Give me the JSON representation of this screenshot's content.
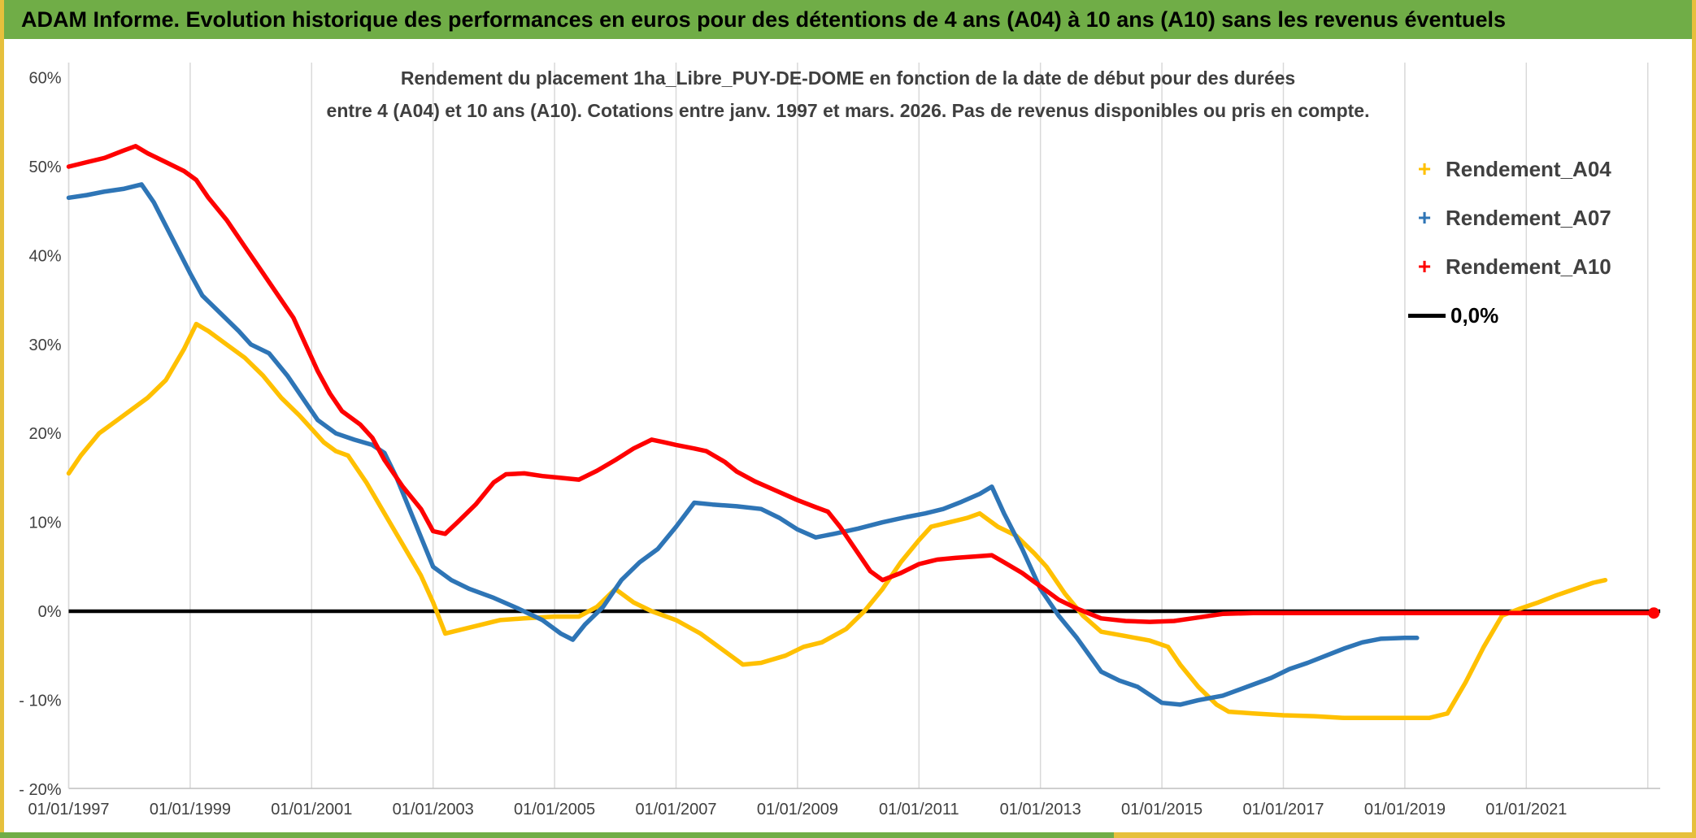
{
  "page": {
    "header_title": "ADAM Informe. Evolution historique des performances en euros pour des détentions de 4 ans (A04) à 10 ans (A10) sans les revenus éventuels"
  },
  "colors": {
    "header_bg": "#70AD47",
    "frame_accent": "#E6C03C",
    "frame_green": "#70AD47",
    "a04": "#FFC000",
    "a07": "#2E75B6",
    "a10": "#FE0000",
    "zero_line": "#000000",
    "grid": "#D9D9D9",
    "axis_text": "#404040",
    "title_text": "#3F3F3F"
  },
  "chart_data": {
    "type": "line",
    "title_lines": [
      "Rendement du placement 1ha_Libre_PUY-DE-DOME en fonction de la date de début pour des durées",
      "entre 4 (A04) et 10 ans (A10). Cotations entre janv. 1997 et mars. 2026. Pas de revenus disponibles ou pris en compte."
    ],
    "x_axis": {
      "range_years": [
        1997,
        2023.2
      ],
      "grid_years": [
        1997,
        1999,
        2001,
        2003,
        2005,
        2007,
        2009,
        2011,
        2013,
        2015,
        2017,
        2019,
        2021,
        2023
      ],
      "ticks": [
        {
          "year": 1997,
          "label": "01/01/1997"
        },
        {
          "year": 1999,
          "label": "01/01/1999"
        },
        {
          "year": 2001,
          "label": "01/01/2001"
        },
        {
          "year": 2003,
          "label": "01/01/2003"
        },
        {
          "year": 2005,
          "label": "01/01/2005"
        },
        {
          "year": 2007,
          "label": "01/01/2007"
        },
        {
          "year": 2009,
          "label": "01/01/2009"
        },
        {
          "year": 2011,
          "label": "01/01/2011"
        },
        {
          "year": 2013,
          "label": "01/01/2013"
        },
        {
          "year": 2015,
          "label": "01/01/2015"
        },
        {
          "year": 2017,
          "label": "01/01/2017"
        },
        {
          "year": 2019,
          "label": "01/01/2019"
        },
        {
          "year": 2021,
          "label": "01/01/2021"
        }
      ]
    },
    "y_axis": {
      "range_pct": [
        -20,
        60
      ],
      "unit": "%",
      "ticks": [
        {
          "value": 60,
          "label": "60%"
        },
        {
          "value": 50,
          "label": "50%"
        },
        {
          "value": 40,
          "label": "40%"
        },
        {
          "value": 30,
          "label": "30%"
        },
        {
          "value": 20,
          "label": "20%"
        },
        {
          "value": 10,
          "label": "10%"
        },
        {
          "value": 0,
          "label": "0%"
        },
        {
          "value": -10,
          "label": "- 10%"
        },
        {
          "value": -20,
          "label": "- 20%"
        }
      ]
    },
    "zero_line": {
      "value": 0,
      "label": "0,0%"
    },
    "legend": [
      {
        "label": "Rendement_A04",
        "color_key": "a04",
        "marker": "plus",
        "marker_glyph": "+"
      },
      {
        "label": "Rendement_A07",
        "color_key": "a07",
        "marker": "plus",
        "marker_glyph": "+"
      },
      {
        "label": "Rendement_A10",
        "color_key": "a10",
        "marker": "plus",
        "marker_glyph": "+"
      },
      {
        "label": "0,0%",
        "color_key": "zero_line",
        "marker": "line",
        "marker_glyph": ""
      }
    ],
    "series": [
      {
        "name": "Rendement_A04",
        "color_key": "a04",
        "end_dot": false,
        "points": [
          [
            1997.0,
            15.5
          ],
          [
            1997.2,
            17.5
          ],
          [
            1997.5,
            20
          ],
          [
            1997.8,
            21.5
          ],
          [
            1998.0,
            22.5
          ],
          [
            1998.3,
            24
          ],
          [
            1998.6,
            26
          ],
          [
            1998.9,
            29.5
          ],
          [
            1999.1,
            32.3
          ],
          [
            1999.3,
            31.5
          ],
          [
            1999.6,
            30
          ],
          [
            1999.9,
            28.5
          ],
          [
            2000.2,
            26.5
          ],
          [
            2000.5,
            24
          ],
          [
            2000.8,
            22
          ],
          [
            2001.0,
            20.5
          ],
          [
            2001.2,
            19
          ],
          [
            2001.4,
            18
          ],
          [
            2001.6,
            17.5
          ],
          [
            2001.9,
            14.5
          ],
          [
            2002.2,
            11
          ],
          [
            2002.5,
            7.5
          ],
          [
            2002.8,
            4
          ],
          [
            2003.0,
            1
          ],
          [
            2003.2,
            -2.5
          ],
          [
            2003.5,
            -2
          ],
          [
            2003.8,
            -1.5
          ],
          [
            2004.1,
            -1
          ],
          [
            2004.5,
            -0.8
          ],
          [
            2005.0,
            -0.6
          ],
          [
            2005.4,
            -0.6
          ],
          [
            2005.7,
            0.5
          ],
          [
            2006.0,
            2.5
          ],
          [
            2006.3,
            1
          ],
          [
            2006.6,
            0
          ],
          [
            2007.0,
            -1
          ],
          [
            2007.4,
            -2.5
          ],
          [
            2007.8,
            -4.5
          ],
          [
            2008.1,
            -6
          ],
          [
            2008.4,
            -5.8
          ],
          [
            2008.8,
            -5
          ],
          [
            2009.1,
            -4
          ],
          [
            2009.4,
            -3.5
          ],
          [
            2009.8,
            -2
          ],
          [
            2010.1,
            0
          ],
          [
            2010.4,
            2.5
          ],
          [
            2010.7,
            5.5
          ],
          [
            2011.0,
            8
          ],
          [
            2011.2,
            9.5
          ],
          [
            2011.5,
            10
          ],
          [
            2011.8,
            10.5
          ],
          [
            2012.0,
            11
          ],
          [
            2012.3,
            9.5
          ],
          [
            2012.6,
            8.5
          ],
          [
            2012.9,
            6.5
          ],
          [
            2013.1,
            5
          ],
          [
            2013.4,
            2
          ],
          [
            2013.7,
            -0.5
          ],
          [
            2014.0,
            -2.3
          ],
          [
            2014.4,
            -2.8
          ],
          [
            2014.8,
            -3.3
          ],
          [
            2015.1,
            -4
          ],
          [
            2015.3,
            -6
          ],
          [
            2015.6,
            -8.5
          ],
          [
            2015.9,
            -10.5
          ],
          [
            2016.1,
            -11.3
          ],
          [
            2016.5,
            -11.5
          ],
          [
            2017.0,
            -11.7
          ],
          [
            2017.5,
            -11.8
          ],
          [
            2018.0,
            -12
          ],
          [
            2018.5,
            -12
          ],
          [
            2019.0,
            -12
          ],
          [
            2019.4,
            -12
          ],
          [
            2019.7,
            -11.5
          ],
          [
            2020.0,
            -8
          ],
          [
            2020.3,
            -4
          ],
          [
            2020.6,
            -0.5
          ],
          [
            2020.9,
            0.3
          ],
          [
            2021.2,
            1
          ],
          [
            2021.5,
            1.8
          ],
          [
            2021.8,
            2.5
          ],
          [
            2022.1,
            3.2
          ],
          [
            2022.3,
            3.5
          ]
        ]
      },
      {
        "name": "Rendement_A07",
        "color_key": "a07",
        "end_dot": false,
        "points": [
          [
            1997.0,
            46.5
          ],
          [
            1997.3,
            46.8
          ],
          [
            1997.6,
            47.2
          ],
          [
            1997.9,
            47.5
          ],
          [
            1998.2,
            48
          ],
          [
            1998.4,
            46
          ],
          [
            1998.7,
            42
          ],
          [
            1999.0,
            38
          ],
          [
            1999.2,
            35.5
          ],
          [
            1999.5,
            33.5
          ],
          [
            1999.8,
            31.5
          ],
          [
            2000.0,
            30
          ],
          [
            2000.3,
            29
          ],
          [
            2000.6,
            26.5
          ],
          [
            2000.9,
            23.5
          ],
          [
            2001.1,
            21.5
          ],
          [
            2001.4,
            20
          ],
          [
            2001.7,
            19.3
          ],
          [
            2002.0,
            18.7
          ],
          [
            2002.2,
            17.8
          ],
          [
            2002.4,
            15
          ],
          [
            2002.7,
            10
          ],
          [
            2003.0,
            5
          ],
          [
            2003.3,
            3.5
          ],
          [
            2003.6,
            2.5
          ],
          [
            2004.0,
            1.5
          ],
          [
            2004.4,
            0.3
          ],
          [
            2004.8,
            -1
          ],
          [
            2005.1,
            -2.5
          ],
          [
            2005.3,
            -3.2
          ],
          [
            2005.5,
            -1.5
          ],
          [
            2005.8,
            0.5
          ],
          [
            2006.1,
            3.5
          ],
          [
            2006.4,
            5.5
          ],
          [
            2006.7,
            7
          ],
          [
            2007.0,
            9.5
          ],
          [
            2007.3,
            12.2
          ],
          [
            2007.6,
            12
          ],
          [
            2008.0,
            11.8
          ],
          [
            2008.4,
            11.5
          ],
          [
            2008.7,
            10.5
          ],
          [
            2009.0,
            9.2
          ],
          [
            2009.3,
            8.3
          ],
          [
            2009.6,
            8.7
          ],
          [
            2010.0,
            9.3
          ],
          [
            2010.4,
            10
          ],
          [
            2010.8,
            10.6
          ],
          [
            2011.1,
            11
          ],
          [
            2011.4,
            11.5
          ],
          [
            2011.7,
            12.3
          ],
          [
            2012.0,
            13.2
          ],
          [
            2012.2,
            14
          ],
          [
            2012.4,
            11
          ],
          [
            2012.7,
            7
          ],
          [
            2013.0,
            2.5
          ],
          [
            2013.3,
            -0.5
          ],
          [
            2013.6,
            -3
          ],
          [
            2014.0,
            -6.8
          ],
          [
            2014.3,
            -7.8
          ],
          [
            2014.6,
            -8.5
          ],
          [
            2015.0,
            -10.3
          ],
          [
            2015.3,
            -10.5
          ],
          [
            2015.6,
            -10
          ],
          [
            2016.0,
            -9.5
          ],
          [
            2016.4,
            -8.5
          ],
          [
            2016.8,
            -7.5
          ],
          [
            2017.1,
            -6.5
          ],
          [
            2017.4,
            -5.8
          ],
          [
            2017.7,
            -5
          ],
          [
            2018.0,
            -4.2
          ],
          [
            2018.3,
            -3.5
          ],
          [
            2018.6,
            -3.1
          ],
          [
            2019.0,
            -3
          ],
          [
            2019.2,
            -3
          ]
        ]
      },
      {
        "name": "Rendement_A10",
        "color_key": "a10",
        "end_dot": true,
        "points": [
          [
            1997.0,
            50
          ],
          [
            1997.3,
            50.5
          ],
          [
            1997.6,
            51
          ],
          [
            1997.9,
            51.8
          ],
          [
            1998.1,
            52.3
          ],
          [
            1998.3,
            51.5
          ],
          [
            1998.6,
            50.5
          ],
          [
            1998.9,
            49.5
          ],
          [
            1999.1,
            48.5
          ],
          [
            1999.3,
            46.5
          ],
          [
            1999.6,
            44
          ],
          [
            1999.9,
            41
          ],
          [
            2000.1,
            39
          ],
          [
            2000.4,
            36
          ],
          [
            2000.7,
            33
          ],
          [
            2000.9,
            30
          ],
          [
            2001.1,
            27
          ],
          [
            2001.3,
            24.5
          ],
          [
            2001.5,
            22.5
          ],
          [
            2001.8,
            21
          ],
          [
            2002.0,
            19.5
          ],
          [
            2002.2,
            17
          ],
          [
            2002.5,
            14
          ],
          [
            2002.8,
            11.5
          ],
          [
            2003.0,
            9
          ],
          [
            2003.2,
            8.7
          ],
          [
            2003.4,
            10
          ],
          [
            2003.7,
            12
          ],
          [
            2004.0,
            14.5
          ],
          [
            2004.2,
            15.4
          ],
          [
            2004.5,
            15.5
          ],
          [
            2004.8,
            15.2
          ],
          [
            2005.1,
            15
          ],
          [
            2005.4,
            14.8
          ],
          [
            2005.7,
            15.8
          ],
          [
            2006.0,
            17
          ],
          [
            2006.3,
            18.3
          ],
          [
            2006.6,
            19.3
          ],
          [
            2006.8,
            19
          ],
          [
            2007.0,
            18.7
          ],
          [
            2007.3,
            18.3
          ],
          [
            2007.5,
            18
          ],
          [
            2007.8,
            16.8
          ],
          [
            2008.0,
            15.7
          ],
          [
            2008.3,
            14.6
          ],
          [
            2008.6,
            13.7
          ],
          [
            2009.0,
            12.5
          ],
          [
            2009.3,
            11.7
          ],
          [
            2009.5,
            11.2
          ],
          [
            2009.7,
            9.5
          ],
          [
            2010.0,
            6.5
          ],
          [
            2010.2,
            4.5
          ],
          [
            2010.4,
            3.5
          ],
          [
            2010.7,
            4.3
          ],
          [
            2011.0,
            5.3
          ],
          [
            2011.3,
            5.8
          ],
          [
            2011.6,
            6
          ],
          [
            2012.0,
            6.2
          ],
          [
            2012.2,
            6.3
          ],
          [
            2012.4,
            5.5
          ],
          [
            2012.7,
            4.3
          ],
          [
            2013.0,
            2.8
          ],
          [
            2013.3,
            1.3
          ],
          [
            2013.6,
            0.3
          ],
          [
            2014.0,
            -0.8
          ],
          [
            2014.4,
            -1.1
          ],
          [
            2014.8,
            -1.2
          ],
          [
            2015.2,
            -1.1
          ],
          [
            2015.6,
            -0.7
          ],
          [
            2016.0,
            -0.3
          ],
          [
            2016.5,
            -0.2
          ],
          [
            2017.0,
            -0.2
          ],
          [
            2018.0,
            -0.2
          ],
          [
            2019.0,
            -0.2
          ],
          [
            2020.0,
            -0.2
          ],
          [
            2021.0,
            -0.2
          ],
          [
            2022.0,
            -0.2
          ],
          [
            2023.1,
            -0.2
          ]
        ]
      }
    ]
  }
}
